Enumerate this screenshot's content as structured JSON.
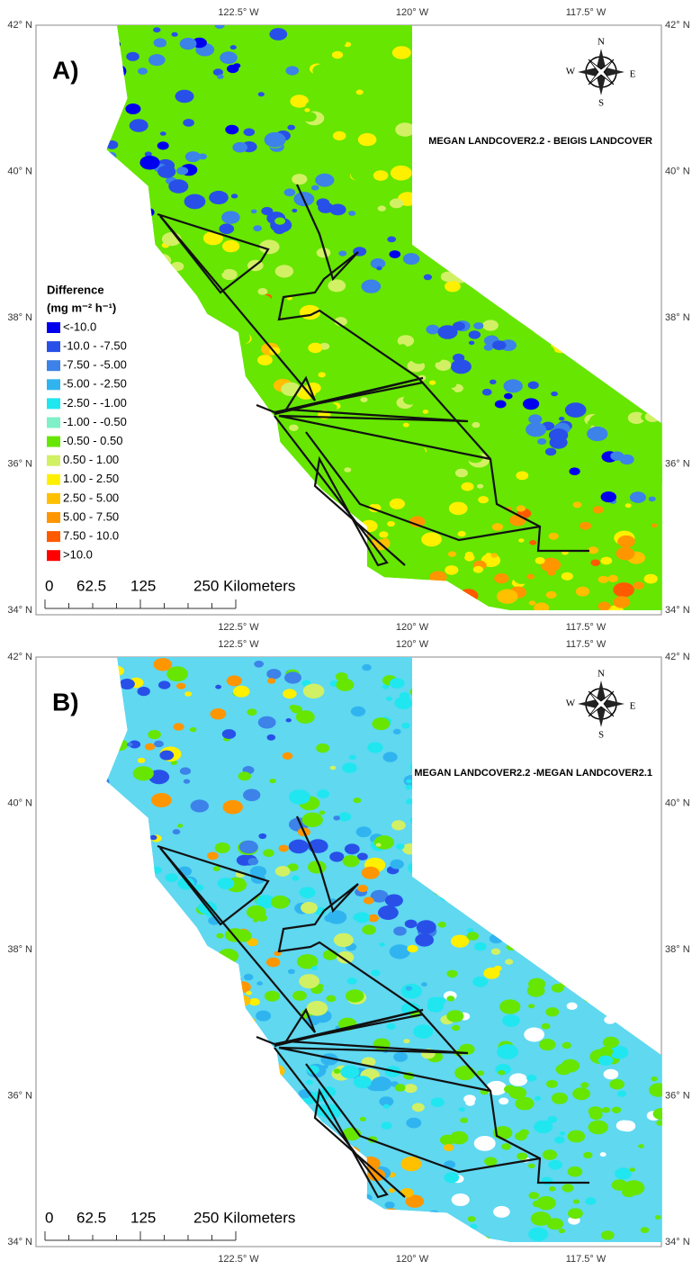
{
  "panels": [
    {
      "label": "A)",
      "title": "MEGAN LANDCOVER2.2 - BEIGIS LANDCOVER",
      "lon_labels_top": [
        "122.5° W",
        "120° W",
        "117.5° W"
      ],
      "lon_labels_bottom": [
        "122.5° W",
        "120° W",
        "117.5° W"
      ],
      "lat_labels_left": [
        "42° N",
        "40° N",
        "38° N",
        "36° N",
        "34° N"
      ],
      "lat_labels_right": [
        "42° N",
        "40° N",
        "38° N",
        "36° N",
        "34° N"
      ],
      "compass": {
        "n": "N",
        "s": "S",
        "e": "E",
        "w": "W"
      },
      "scale": [
        "0",
        "62.5",
        "125",
        "250 Kilometers"
      ]
    },
    {
      "label": "B)",
      "title": "MEGAN LANDCOVER2.2 -MEGAN LANDCOVER2.1",
      "lon_labels_top": [
        "122.5° W",
        "120° W",
        "117.5° W"
      ],
      "lon_labels_bottom": [
        "122.5° W",
        "120° W",
        "117.5° W"
      ],
      "lat_labels_left": [
        "42° N",
        "40° N",
        "38° N",
        "36° N",
        "34° N"
      ],
      "lat_labels_right": [
        "42° N",
        "40° N",
        "38° N",
        "36° N",
        "34° N"
      ],
      "compass": {
        "n": "N",
        "s": "S",
        "e": "E",
        "w": "W"
      },
      "scale": [
        "0",
        "62.5",
        "125",
        "250 Kilometers"
      ]
    }
  ],
  "legend": {
    "title": "Difference",
    "unit": "(mg m⁻² h⁻¹)",
    "items": [
      {
        "label": "<-10.0",
        "color": "#0000ee"
      },
      {
        "label": "-10.0 - -7.50",
        "color": "#2850e8"
      },
      {
        "label": "-7.50 - -5.00",
        "color": "#3c82e8"
      },
      {
        "label": "-5.00 - -2.50",
        "color": "#30b4f0"
      },
      {
        "label": "-2.50 - -1.00",
        "color": "#20e6f0"
      },
      {
        "label": "-1.00 - -0.50",
        "color": "#7ff0c8"
      },
      {
        "label": "-0.50 - 0.50",
        "color": "#66e600"
      },
      {
        "label": "0.50 - 1.00",
        "color": "#d2f064"
      },
      {
        "label": "1.00 - 2.50",
        "color": "#fff000"
      },
      {
        "label": "2.50 - 5.00",
        "color": "#ffc000"
      },
      {
        "label": "5.00 - 7.50",
        "color": "#ff9600"
      },
      {
        "label": "7.50 - 10.0",
        "color": "#ff5a00"
      },
      {
        "label": ">10.0",
        "color": "#ff0000"
      }
    ]
  }
}
